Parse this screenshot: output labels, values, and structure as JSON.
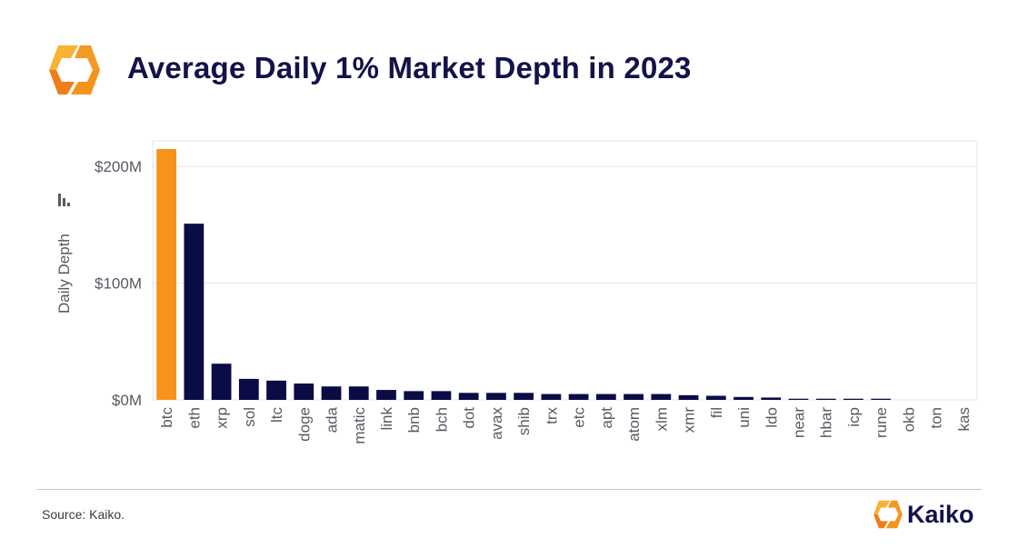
{
  "header": {
    "title": "Average Daily 1% Market Depth in 2023"
  },
  "footer": {
    "source": "Source: Kaiko.",
    "brand_name": "Kaiko"
  },
  "colors": {
    "highlight": "#F7931A",
    "bar": "#0B0B45",
    "title": "#14124B",
    "logo_light": "#F9B233",
    "logo_dark": "#EE7D1A"
  },
  "icons": {
    "y_axis_title": "bar-chart-icon",
    "brand_mark": "kaiko-logo-icon"
  },
  "chart_data": {
    "type": "bar",
    "title": "Average Daily 1% Market Depth in 2023",
    "xlabel": "",
    "ylabel": "Daily Depth",
    "ylim": [
      0,
      222
    ],
    "unit": "USD millions",
    "y_ticks": [
      0,
      100,
      200
    ],
    "y_tick_labels": [
      "$0M",
      "$100M",
      "$200M"
    ],
    "grid": true,
    "highlight_category": "btc",
    "categories": [
      "btc",
      "eth",
      "xrp",
      "sol",
      "ltc",
      "doge",
      "ada",
      "matic",
      "link",
      "bnb",
      "bch",
      "dot",
      "avax",
      "shib",
      "trx",
      "etc",
      "apt",
      "atom",
      "xlm",
      "xmr",
      "fil",
      "uni",
      "ldo",
      "near",
      "hbar",
      "icp",
      "rune",
      "okb",
      "ton",
      "kas"
    ],
    "values": [
      215,
      151,
      31,
      18,
      16.5,
      14,
      11.5,
      11.5,
      8.5,
      7.5,
      7.5,
      6,
      6,
      6,
      5,
      5,
      5,
      5,
      5,
      4,
      3.5,
      2.5,
      2,
      1,
      1,
      1,
      1,
      0,
      0,
      0
    ]
  }
}
